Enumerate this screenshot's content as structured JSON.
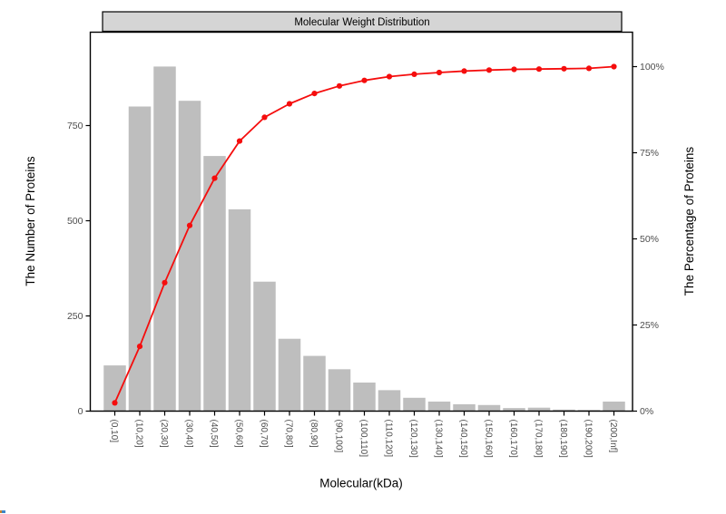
{
  "figure": {
    "background": "#ffffff"
  },
  "chart_data": {
    "type": "bar",
    "subtype": "pareto: histogram bars + cumulative percentage line (dual y-axis)",
    "title": "Molecular Weight Distribution",
    "xlabel": "Molecular(kDa)",
    "ylabel_left": "The Number of Proteins",
    "ylabel_right": "The Percentage of Proteins",
    "grid": "off",
    "legend": "none",
    "categories": [
      "(0,10]",
      "(10,20]",
      "(20,30]",
      "(30,40]",
      "(40,50]",
      "(50,60]",
      "(60,70]",
      "(70,80]",
      "(80,90]",
      "(90,100]",
      "(100,110]",
      "(110,120]",
      "(120,130]",
      "(130,140]",
      "(140,150]",
      "(150,160]",
      "(160,170]",
      "(170,180]",
      "(180,190]",
      "(190,200]",
      "(200,Inf]"
    ],
    "series": [
      {
        "name": "number of proteins",
        "type": "bar",
        "color": "#BEBEBE",
        "values": [
          120,
          800,
          905,
          815,
          670,
          530,
          340,
          190,
          145,
          110,
          75,
          55,
          35,
          25,
          18,
          16,
          8,
          9,
          4,
          3,
          25
        ]
      },
      {
        "name": "cumulative percentage of proteins",
        "type": "line",
        "color": "#F50D0D",
        "values_percent": [
          2.4,
          18.8,
          37.3,
          53.9,
          67.6,
          78.4,
          85.3,
          89.2,
          92.2,
          94.4,
          96.0,
          97.1,
          97.8,
          98.3,
          98.7,
          99.0,
          99.2,
          99.3,
          99.4,
          99.5,
          100.0
        ]
      }
    ],
    "y_left_ticks": [
      "0",
      "250",
      "500",
      "750"
    ],
    "y_left_tick_values": [
      0,
      250,
      500,
      750
    ],
    "y_left_lim": [
      0,
      950
    ],
    "y_right_ticks": [
      "0%",
      "25%",
      "50%",
      "75%",
      "100%"
    ],
    "y_right_tick_values": [
      0,
      25,
      50,
      75,
      100
    ],
    "y_right_lim": [
      0,
      105
    ],
    "strip_fill": "#D5D5D5",
    "panel_border_color": "#000000",
    "tick_label_color": "#4D4D4D",
    "axis_title_color": "#000000"
  }
}
